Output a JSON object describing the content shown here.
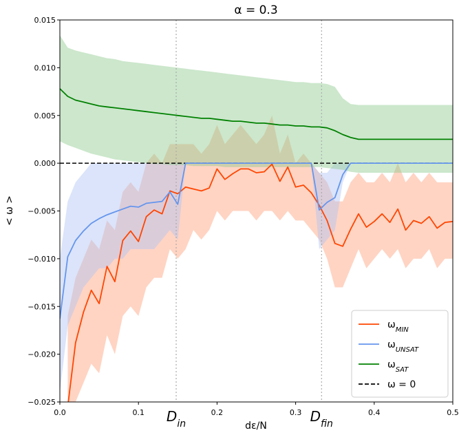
{
  "chart_data": {
    "type": "line",
    "title": "α = 0.3",
    "xlabel": "dε/N",
    "ylabel": "< ω >",
    "xlim": [
      0.0,
      0.5
    ],
    "ylim": [
      -0.025,
      0.015
    ],
    "x_ticks": [
      0.0,
      0.1,
      0.2,
      0.3,
      0.4,
      0.5
    ],
    "x_tick_labels": [
      "0.0",
      "0.1",
      "0.2",
      "0.3",
      "0.4",
      "0.5"
    ],
    "y_ticks": [
      -0.025,
      -0.02,
      -0.015,
      -0.01,
      -0.005,
      0.0,
      0.005,
      0.01,
      0.015
    ],
    "y_tick_labels": [
      "−0.025",
      "−0.020",
      "−0.015",
      "−0.010",
      "−0.005",
      "0.000",
      "0.005",
      "0.010",
      "0.015"
    ],
    "grid": false,
    "legend_position": "bottom-right",
    "vertical_markers": [
      {
        "x": 0.148,
        "label_base": "D",
        "label_sub": "in"
      },
      {
        "x": 0.333,
        "label_base": "D",
        "label_sub": "fin"
      }
    ],
    "reference_line": {
      "name": "ω = 0",
      "y": 0.0,
      "color": "#000000",
      "style": "dashed"
    },
    "series": [
      {
        "name": "ω_MIN",
        "legend_base": "ω",
        "legend_sub": "MIN",
        "color": "#ff4500",
        "band_color": "#ffa07a",
        "x": [
          0.01,
          0.02,
          0.03,
          0.04,
          0.05,
          0.06,
          0.07,
          0.08,
          0.09,
          0.1,
          0.11,
          0.12,
          0.13,
          0.14,
          0.15,
          0.16,
          0.17,
          0.18,
          0.19,
          0.2,
          0.21,
          0.22,
          0.23,
          0.24,
          0.25,
          0.26,
          0.27,
          0.28,
          0.29,
          0.3,
          0.31,
          0.32,
          0.33,
          0.34,
          0.35,
          0.36,
          0.37,
          0.38,
          0.39,
          0.4,
          0.41,
          0.42,
          0.43,
          0.44,
          0.45,
          0.46,
          0.47,
          0.48,
          0.49,
          0.5
        ],
        "y": [
          -0.0255,
          -0.0188,
          -0.0156,
          -0.0133,
          -0.0147,
          -0.0108,
          -0.0124,
          -0.0081,
          -0.0071,
          -0.0082,
          -0.0056,
          -0.0049,
          -0.0053,
          -0.0029,
          -0.0032,
          -0.0025,
          -0.0027,
          -0.0029,
          -0.0026,
          -0.0006,
          -0.0017,
          -0.0011,
          -0.0006,
          -0.0006,
          -0.001,
          -0.0009,
          -0.0001,
          -0.0019,
          -0.0004,
          -0.0025,
          -0.0023,
          -0.0031,
          -0.0044,
          -0.006,
          -0.0084,
          -0.0087,
          -0.0069,
          -0.0053,
          -0.0067,
          -0.0061,
          -0.0053,
          -0.0062,
          -0.0048,
          -0.007,
          -0.006,
          -0.0063,
          -0.0056,
          -0.0068,
          -0.0062,
          -0.0061
        ],
        "y_upper": [
          -0.016,
          -0.012,
          -0.01,
          -0.008,
          -0.009,
          -0.006,
          -0.007,
          -0.003,
          -0.002,
          -0.003,
          0.0,
          0.001,
          0.0,
          0.002,
          0.002,
          0.002,
          0.002,
          0.001,
          0.002,
          0.004,
          0.002,
          0.003,
          0.004,
          0.003,
          0.002,
          0.003,
          0.005,
          0.001,
          0.003,
          0.0,
          0.001,
          0.0,
          -0.001,
          -0.002,
          -0.004,
          -0.004,
          -0.002,
          -0.001,
          -0.002,
          -0.002,
          -0.001,
          -0.002,
          0.0,
          -0.002,
          -0.001,
          -0.002,
          -0.001,
          -0.002,
          -0.002,
          -0.002
        ],
        "y_lower": [
          -0.025,
          -0.025,
          -0.023,
          -0.021,
          -0.022,
          -0.018,
          -0.02,
          -0.016,
          -0.015,
          -0.016,
          -0.013,
          -0.012,
          -0.012,
          -0.009,
          -0.01,
          -0.009,
          -0.007,
          -0.008,
          -0.007,
          -0.005,
          -0.006,
          -0.005,
          -0.005,
          -0.005,
          -0.006,
          -0.005,
          -0.005,
          -0.006,
          -0.005,
          -0.006,
          -0.006,
          -0.007,
          -0.008,
          -0.01,
          -0.013,
          -0.013,
          -0.011,
          -0.009,
          -0.011,
          -0.01,
          -0.009,
          -0.01,
          -0.009,
          -0.011,
          -0.01,
          -0.01,
          -0.009,
          -0.011,
          -0.01,
          -0.01
        ]
      },
      {
        "name": "ω_UNSAT",
        "legend_base": "ω",
        "legend_sub": "UNSAT",
        "color": "#6495ed",
        "band_color": "#b0c4f5",
        "x": [
          0.0,
          0.01,
          0.02,
          0.03,
          0.04,
          0.05,
          0.06,
          0.07,
          0.08,
          0.09,
          0.1,
          0.11,
          0.12,
          0.13,
          0.14,
          0.15,
          0.16,
          0.17,
          0.18,
          0.19,
          0.2,
          0.21,
          0.22,
          0.23,
          0.24,
          0.25,
          0.26,
          0.27,
          0.28,
          0.29,
          0.3,
          0.31,
          0.32,
          0.33,
          0.34,
          0.35,
          0.36,
          0.37,
          0.38,
          0.39,
          0.4,
          0.41,
          0.42,
          0.43,
          0.44,
          0.45,
          0.46,
          0.47,
          0.48,
          0.49,
          0.5
        ],
        "y": [
          -0.0163,
          -0.0098,
          -0.0081,
          -0.0071,
          -0.0063,
          -0.0058,
          -0.0054,
          -0.0051,
          -0.0048,
          -0.0045,
          -0.0046,
          -0.0042,
          -0.0041,
          -0.004,
          -0.003,
          -0.0043,
          0.0,
          0.0,
          0.0,
          0.0,
          0.0,
          0.0,
          0.0,
          0.0,
          0.0,
          0.0,
          0.0,
          0.0,
          0.0,
          0.0,
          0.0,
          0.0,
          0.0,
          -0.0049,
          -0.0041,
          -0.0036,
          -0.0012,
          0.0,
          0.0,
          0.0,
          0.0,
          0.0,
          0.0,
          0.0,
          0.0,
          0.0,
          0.0,
          0.0,
          0.0,
          0.0,
          0.0
        ],
        "y_upper": [
          -0.01,
          -0.004,
          -0.002,
          -0.001,
          0.0,
          0.0,
          0.0,
          0.0,
          0.0,
          0.0,
          0.0,
          0.0,
          0.0,
          0.0,
          0.0,
          0.0,
          0.0,
          0.0,
          0.0,
          0.0,
          0.0,
          0.0,
          0.0,
          0.0,
          0.0,
          0.0,
          0.0,
          0.0,
          0.0,
          0.0,
          0.0,
          0.0,
          0.0,
          -0.001,
          -0.001,
          0.0,
          0.0,
          0.0,
          0.0,
          0.0,
          0.0,
          0.0,
          0.0,
          0.0,
          0.0,
          0.0,
          0.0,
          0.0,
          0.0,
          0.0,
          0.0
        ],
        "y_lower": [
          -0.024,
          -0.017,
          -0.015,
          -0.013,
          -0.012,
          -0.011,
          -0.011,
          -0.01,
          -0.01,
          -0.009,
          -0.009,
          -0.009,
          -0.009,
          -0.008,
          -0.007,
          -0.008,
          0.0,
          0.0,
          0.0,
          0.0,
          0.0,
          0.0,
          0.0,
          0.0,
          0.0,
          0.0,
          0.0,
          0.0,
          0.0,
          0.0,
          0.0,
          0.0,
          0.0,
          -0.009,
          -0.008,
          -0.007,
          -0.002,
          0.0,
          0.0,
          0.0,
          0.0,
          0.0,
          0.0,
          0.0,
          0.0,
          0.0,
          0.0,
          0.0,
          0.0,
          0.0,
          0.0
        ]
      },
      {
        "name": "ω_SAT",
        "legend_base": "ω",
        "legend_sub": "SAT",
        "color": "#008000",
        "band_color": "#8fc98f",
        "x": [
          0.0,
          0.01,
          0.02,
          0.03,
          0.04,
          0.05,
          0.06,
          0.07,
          0.08,
          0.09,
          0.1,
          0.11,
          0.12,
          0.13,
          0.14,
          0.15,
          0.16,
          0.17,
          0.18,
          0.19,
          0.2,
          0.21,
          0.22,
          0.23,
          0.24,
          0.25,
          0.26,
          0.27,
          0.28,
          0.29,
          0.3,
          0.31,
          0.32,
          0.33,
          0.34,
          0.35,
          0.36,
          0.37,
          0.38,
          0.39,
          0.4,
          0.41,
          0.42,
          0.43,
          0.44,
          0.45,
          0.46,
          0.47,
          0.48,
          0.49,
          0.5
        ],
        "y": [
          0.0078,
          0.007,
          0.0066,
          0.0064,
          0.0062,
          0.006,
          0.0059,
          0.0058,
          0.0057,
          0.0056,
          0.0055,
          0.0054,
          0.0053,
          0.0052,
          0.0051,
          0.005,
          0.0049,
          0.0048,
          0.0047,
          0.0047,
          0.0046,
          0.0045,
          0.0044,
          0.0044,
          0.0043,
          0.0042,
          0.0042,
          0.0041,
          0.004,
          0.004,
          0.0039,
          0.0039,
          0.0038,
          0.0038,
          0.0037,
          0.0034,
          0.003,
          0.0027,
          0.0025,
          0.0025,
          0.0025,
          0.0025,
          0.0025,
          0.0025,
          0.0025,
          0.0025,
          0.0025,
          0.0025,
          0.0025,
          0.0025,
          0.0025
        ],
        "y_upper": [
          0.0134,
          0.0121,
          0.0118,
          0.0116,
          0.0114,
          0.0112,
          0.011,
          0.0109,
          0.0107,
          0.0106,
          0.0105,
          0.0104,
          0.0103,
          0.0102,
          0.0101,
          0.01,
          0.0099,
          0.0098,
          0.0097,
          0.0096,
          0.0095,
          0.0094,
          0.0093,
          0.0092,
          0.0091,
          0.009,
          0.0089,
          0.0088,
          0.0087,
          0.0086,
          0.0085,
          0.0085,
          0.0084,
          0.0084,
          0.0083,
          0.008,
          0.0068,
          0.0062,
          0.0061,
          0.0061,
          0.0061,
          0.0061,
          0.0061,
          0.0061,
          0.0061,
          0.0061,
          0.0061,
          0.0061,
          0.0061,
          0.0061,
          0.0061
        ],
        "y_lower": [
          0.0023,
          0.0019,
          0.0016,
          0.0013,
          0.001,
          0.0008,
          0.0006,
          0.0004,
          0.0003,
          0.0002,
          0.0001,
          0.0,
          -0.0001,
          -0.0001,
          -0.0002,
          -0.0002,
          -0.0002,
          -0.0003,
          -0.0003,
          -0.0003,
          -0.0003,
          -0.0004,
          -0.0004,
          -0.0004,
          -0.0004,
          -0.0004,
          -0.0004,
          -0.0004,
          -0.0004,
          -0.0004,
          -0.0004,
          -0.0004,
          -0.0004,
          -0.0004,
          -0.0005,
          -0.0006,
          -0.0007,
          -0.0009,
          -0.001,
          -0.001,
          -0.001,
          -0.001,
          -0.001,
          -0.001,
          -0.001,
          -0.001,
          -0.001,
          -0.001,
          -0.001,
          -0.001,
          -0.001
        ]
      }
    ]
  }
}
